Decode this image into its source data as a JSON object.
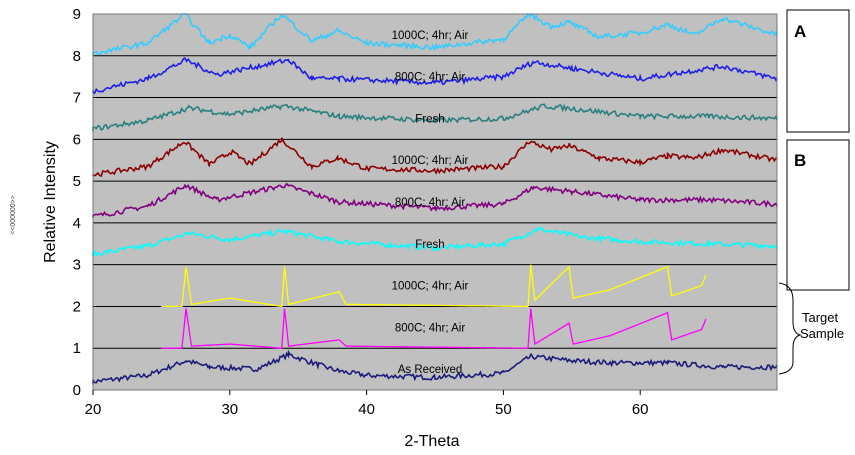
{
  "chart_data": {
    "type": "line",
    "title": "",
    "xlabel": "2-Theta",
    "ylabel": "Relative Intensity",
    "xlim": [
      20,
      70
    ],
    "ylim": [
      0,
      9
    ],
    "xticks": [
      20,
      30,
      40,
      50,
      60
    ],
    "yticks": [
      0,
      1,
      2,
      3,
      4,
      5,
      6,
      7,
      8,
      9
    ],
    "grid": "horizontal",
    "background": "#c0c0c0",
    "side_stamp": "<<000000>>",
    "panels": [
      {
        "letter": "A",
        "y_range": [
          6,
          9
        ]
      },
      {
        "letter": "B",
        "y_range": [
          3,
          6
        ]
      }
    ],
    "bracket_label": "Target\nSample",
    "series": [
      {
        "name": "As Received",
        "color": "#1c1c7a",
        "x": [
          20,
          24,
          26.8,
          28.5,
          32,
          34.3,
          36.5,
          38,
          40,
          45,
          50,
          52,
          55,
          58,
          62,
          66,
          70
        ],
        "y": [
          0.2,
          0.35,
          0.7,
          0.55,
          0.5,
          0.85,
          0.6,
          0.45,
          0.35,
          0.3,
          0.4,
          0.8,
          0.7,
          0.65,
          0.65,
          0.55,
          0.55
        ]
      },
      {
        "name": "800C; 4hr; Air",
        "color": "#ff00ff",
        "x": [
          25,
          26.5,
          26.8,
          27.2,
          30,
          33.8,
          34.0,
          34.3,
          38,
          38.5,
          51.8,
          52.0,
          52.3,
          54.8,
          55.1,
          57.8,
          62,
          62.3,
          64.5,
          64.8
        ],
        "y": [
          1.0,
          1.0,
          1.95,
          1.05,
          1.1,
          1.0,
          1.95,
          1.05,
          1.2,
          1.05,
          1.0,
          1.95,
          1.1,
          1.6,
          1.1,
          1.3,
          1.85,
          1.2,
          1.45,
          1.7
        ]
      },
      {
        "name": "1000C; 4hr; Air",
        "color": "#ffff00",
        "x": [
          25,
          26.5,
          26.8,
          27.2,
          30,
          33.8,
          34.0,
          34.3,
          38,
          38.5,
          51.8,
          52.0,
          52.3,
          54.8,
          55.1,
          57.8,
          62,
          62.3,
          64.5,
          64.8
        ],
        "y": [
          2.0,
          2.0,
          2.95,
          2.05,
          2.2,
          2.0,
          2.95,
          2.05,
          2.35,
          2.05,
          2.0,
          3.0,
          2.15,
          2.95,
          2.2,
          2.4,
          2.95,
          2.25,
          2.5,
          2.75
        ]
      },
      {
        "name": "Fresh",
        "color": "#00ffff",
        "x": [
          20,
          24,
          27,
          30,
          34,
          38,
          45,
          50,
          52.5,
          56,
          60,
          65,
          70
        ],
        "y": [
          3.25,
          3.45,
          3.75,
          3.6,
          3.8,
          3.55,
          3.4,
          3.5,
          3.85,
          3.65,
          3.55,
          3.5,
          3.45
        ]
      },
      {
        "name": "800C; 4hr; Air",
        "color": "#800080",
        "x": [
          20,
          24,
          26.8,
          29,
          34,
          38,
          45,
          50,
          52.2,
          55,
          60,
          65,
          70
        ],
        "y": [
          4.15,
          4.4,
          4.9,
          4.55,
          4.9,
          4.5,
          4.35,
          4.45,
          4.85,
          4.75,
          4.55,
          4.55,
          4.45
        ]
      },
      {
        "name": "1000C; 4hr; Air",
        "color": "#8b0000",
        "x": [
          20,
          24,
          26.7,
          28.5,
          30.1,
          31.5,
          33.8,
          36,
          37.9,
          40,
          45,
          50,
          51.9,
          53.5,
          54.8,
          57,
          60,
          62,
          64,
          66,
          70
        ],
        "y": [
          5.15,
          5.35,
          5.95,
          5.4,
          5.7,
          5.4,
          6.0,
          5.35,
          5.55,
          5.3,
          5.25,
          5.35,
          5.95,
          5.75,
          5.85,
          5.55,
          5.45,
          5.6,
          5.55,
          5.75,
          5.5
        ]
      },
      {
        "name": "Fresh",
        "color": "#2a8080",
        "x": [
          20,
          24,
          27,
          30,
          34,
          38,
          45,
          50,
          53,
          56,
          60,
          65,
          70
        ],
        "y": [
          6.25,
          6.45,
          6.75,
          6.6,
          6.8,
          6.55,
          6.45,
          6.5,
          6.8,
          6.7,
          6.55,
          6.55,
          6.5
        ]
      },
      {
        "name": "800C; 4hr; Air",
        "color": "#1e1ee6",
        "x": [
          20,
          24,
          26.8,
          29,
          34.3,
          36,
          38,
          45,
          50,
          52.2,
          55,
          60,
          66,
          70
        ],
        "y": [
          7.15,
          7.45,
          7.9,
          7.55,
          7.9,
          7.45,
          7.45,
          7.35,
          7.5,
          7.85,
          7.7,
          7.45,
          7.75,
          7.45
        ]
      },
      {
        "name": "1000C; 4hr; Air",
        "color": "#33ccff",
        "x": [
          20,
          24,
          26.7,
          28.5,
          30,
          31.5,
          33.8,
          36,
          37.9,
          40,
          45,
          50,
          51.9,
          53.5,
          54.8,
          57,
          60,
          62,
          64,
          66,
          70
        ],
        "y": [
          8.05,
          8.3,
          9.0,
          8.3,
          8.5,
          8.2,
          9.0,
          8.35,
          8.6,
          8.3,
          8.2,
          8.4,
          9.0,
          8.7,
          8.8,
          8.45,
          8.55,
          8.75,
          8.5,
          8.9,
          8.5
        ]
      }
    ]
  }
}
